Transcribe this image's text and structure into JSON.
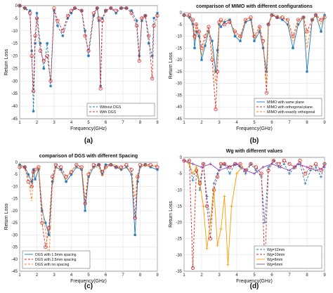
{
  "chart_data": [
    {
      "type": "line",
      "panel_label": "(a)",
      "title": "",
      "xlabel": "Frequency(GHz)",
      "ylabel": "Return Loss",
      "xlim": [
        1,
        9
      ],
      "ylim": [
        -45,
        0
      ],
      "xticks": [
        "1",
        "2",
        "3",
        "4",
        "5",
        "6",
        "7",
        "8",
        "9"
      ],
      "yticks": [
        "0",
        "-5",
        "-10",
        "-15",
        "-20",
        "-25",
        "-30",
        "-35",
        "-40",
        "-45"
      ],
      "grid": true,
      "legend_position": "lower-right",
      "series": [
        {
          "name": "Without DGS",
          "color": "#1f77b4",
          "dashed": true,
          "marker": "star",
          "x": [
            1,
            1.3,
            1.6,
            1.7,
            1.8,
            1.9,
            2.0,
            2.2,
            2.4,
            2.6,
            2.8,
            3.0,
            3.2,
            3.5,
            3.8,
            4.0,
            4.2,
            4.6,
            4.8,
            5.0,
            5.3,
            5.5,
            5.6,
            5.7,
            5.8,
            6.0,
            6.3,
            6.6,
            6.9,
            7.2,
            7.5,
            7.8,
            7.95,
            8.1,
            8.3,
            8.5,
            8.7,
            8.8,
            9.0
          ],
          "y": [
            0,
            -1,
            -2,
            -18,
            -42,
            -15,
            -3,
            -15,
            -25,
            -15,
            -32,
            -2,
            -8,
            -12,
            -5,
            -3,
            -1,
            -2,
            -10,
            -20,
            -4,
            -1,
            -6,
            -32,
            -5,
            -2,
            -1,
            -3,
            -1,
            -1,
            -2,
            -6,
            -20,
            -6,
            -4,
            -15,
            -20,
            -5,
            -3
          ]
        },
        {
          "name": "With DGS",
          "color": "#d62728",
          "dashed": true,
          "marker": "circle",
          "x": [
            1,
            1.3,
            1.6,
            1.7,
            1.8,
            1.9,
            2.0,
            2.2,
            2.4,
            2.6,
            2.8,
            3.0,
            3.2,
            3.5,
            3.8,
            4.0,
            4.2,
            4.6,
            4.8,
            5.0,
            5.3,
            5.5,
            5.6,
            5.7,
            5.8,
            6.0,
            6.3,
            6.6,
            6.9,
            7.2,
            7.5,
            7.8,
            7.95,
            8.1,
            8.3,
            8.5,
            8.7,
            8.8,
            9.0
          ],
          "y": [
            0,
            -1,
            -3,
            -20,
            -34,
            -12,
            -5,
            -18,
            -22,
            -20,
            -30,
            -1,
            -6,
            -10,
            -4,
            -2,
            -1,
            -2,
            -12,
            -18,
            -3,
            -1,
            -5,
            -33,
            -6,
            -2,
            -1,
            -2,
            -1,
            -1,
            -3,
            -8,
            -22,
            -5,
            -4,
            -12,
            -29,
            -8,
            -4
          ]
        }
      ]
    },
    {
      "type": "line",
      "panel_label": "(b)",
      "title": "comparison of MIMO with different configurations",
      "xlabel": "Frequency(GHz)",
      "ylabel": "Return Loss",
      "xlim": [
        1,
        9
      ],
      "ylim": [
        -45,
        0
      ],
      "xticks": [
        "1",
        "2",
        "3",
        "4",
        "5",
        "6",
        "7",
        "8",
        "9"
      ],
      "yticks": [
        "0",
        "-5",
        "-10",
        "-15",
        "-20",
        "-25",
        "-30",
        "-35",
        "-40",
        "-45"
      ],
      "grid": true,
      "legend_position": "lower-right",
      "series": [
        {
          "name": "MIMO with same plane",
          "color": "#1f77b4",
          "dashed": false,
          "marker": "star",
          "x": [
            1,
            1.3,
            1.5,
            1.6,
            1.7,
            1.85,
            2.0,
            2.2,
            2.4,
            2.6,
            2.8,
            2.9,
            3.0,
            3.1,
            3.3,
            3.6,
            3.9,
            4.2,
            4.5,
            4.8,
            5.0,
            5.3,
            5.5,
            5.7,
            5.8,
            6.0,
            6.3,
            6.6,
            6.9,
            7.2,
            7.5,
            7.8,
            8.0,
            8.3,
            8.5,
            8.8,
            9.0
          ],
          "y": [
            -1,
            -2,
            -5,
            -15,
            -8,
            -10,
            -20,
            -14,
            -8,
            -12,
            -25,
            -16,
            -5,
            -6,
            -4,
            -3,
            -10,
            -12,
            -4,
            -3,
            -12,
            -8,
            -15,
            -25,
            -5,
            -1,
            -2,
            -3,
            -5,
            -15,
            -5,
            -2,
            -25,
            -3,
            -1,
            -8,
            -1
          ]
        },
        {
          "name": "MIMO with orthogonal plane",
          "color": "#d62728",
          "dashed": true,
          "marker": "circle",
          "x": [
            1,
            1.3,
            1.5,
            1.6,
            1.7,
            1.85,
            2.0,
            2.2,
            2.4,
            2.6,
            2.8,
            2.9,
            3.0,
            3.1,
            3.3,
            3.6,
            3.9,
            4.2,
            4.5,
            4.8,
            5.0,
            5.3,
            5.5,
            5.7,
            5.8,
            6.0,
            6.3,
            6.6,
            6.9,
            7.2,
            7.5,
            7.8,
            8.0,
            8.3,
            8.5,
            8.8,
            9.0
          ],
          "y": [
            -1,
            -1,
            -3,
            -10,
            -5,
            -8,
            -15,
            -10,
            -6,
            -20,
            -41,
            -25,
            -4,
            -3,
            -5,
            -4,
            -8,
            -10,
            -3,
            -2,
            -10,
            -6,
            -12,
            -34,
            -5,
            -1,
            -2,
            -2,
            -3,
            -10,
            -3,
            -2,
            -8,
            -3,
            -1,
            -3,
            -2
          ]
        },
        {
          "name": "MIMO with exactly orthogonal",
          "color": "#ff7f0e",
          "dashed": true,
          "marker": "none",
          "x": [
            1,
            1.3,
            1.5,
            1.6,
            1.7,
            1.85,
            2.0,
            2.2,
            2.4,
            2.6,
            2.8,
            2.9,
            3.0,
            3.1,
            3.3,
            3.6,
            3.9,
            4.2,
            4.5,
            4.8,
            5.0,
            5.3,
            5.5,
            5.7,
            5.8,
            6.0,
            6.3,
            6.6,
            6.9,
            7.2,
            7.5,
            7.8,
            8.0,
            8.3,
            8.5,
            8.8,
            9.0
          ],
          "y": [
            -1,
            -2,
            -4,
            -12,
            -6,
            -9,
            -18,
            -12,
            -7,
            -15,
            -30,
            -22,
            -5,
            -4,
            -3,
            -3,
            -9,
            -11,
            -3,
            -2,
            -11,
            -7,
            -13,
            -30,
            -6,
            -1,
            -1,
            -2,
            -4,
            -12,
            -4,
            -2,
            -15,
            -3,
            -1,
            -5,
            -1
          ]
        }
      ]
    },
    {
      "type": "line",
      "panel_label": "(c)",
      "title": "comparison of DGS with different Spacing",
      "xlabel": "Frequency(GHz)",
      "ylabel": "Return Loss",
      "xlim": [
        1,
        9
      ],
      "ylim": [
        -45,
        0
      ],
      "xticks": [
        "1",
        "2",
        "3",
        "4",
        "5",
        "6",
        "7",
        "8",
        "9"
      ],
      "yticks": [
        "0",
        "-5",
        "-10",
        "-15",
        "-20",
        "-25",
        "-30",
        "-35",
        "-40",
        "-45"
      ],
      "grid": true,
      "legend_position": "lower-left",
      "series": [
        {
          "name": "DGS with 1.5mm spacing",
          "color": "#1f77b4",
          "dashed": false,
          "marker": "star",
          "x": [
            1,
            1.3,
            1.5,
            1.7,
            1.8,
            1.9,
            2.1,
            2.3,
            2.5,
            2.7,
            2.9,
            3.1,
            3.4,
            3.7,
            4.0,
            4.3,
            4.6,
            4.8,
            5.0,
            5.3,
            5.6,
            5.8,
            6.0,
            6.3,
            6.6,
            6.9,
            7.2,
            7.5,
            7.7,
            7.85,
            8.0,
            8.3,
            8.6,
            9.0
          ],
          "y": [
            -1,
            -2,
            -5,
            -8,
            -3,
            -7,
            -3,
            -20,
            -25,
            -30,
            -8,
            -2,
            -3,
            -8,
            -5,
            -2,
            -3,
            -20,
            -6,
            -2,
            -1,
            -5,
            -1,
            -1,
            -2,
            -3,
            -2,
            -5,
            -30,
            -8,
            -2,
            -1,
            -2,
            -3
          ]
        },
        {
          "name": "DGS with 2.5mm spacing",
          "color": "#d62728",
          "dashed": true,
          "marker": "circle",
          "x": [
            1,
            1.3,
            1.5,
            1.7,
            1.8,
            1.9,
            2.1,
            2.3,
            2.5,
            2.7,
            2.9,
            3.1,
            3.4,
            3.7,
            4.0,
            4.3,
            4.6,
            4.8,
            5.0,
            5.3,
            5.6,
            5.8,
            6.0,
            6.3,
            6.6,
            6.9,
            7.2,
            7.5,
            7.7,
            7.85,
            8.0,
            8.3,
            8.6,
            9.0
          ],
          "y": [
            -2,
            -2,
            -8,
            -10,
            -4,
            -3,
            -2,
            -25,
            -35,
            -27,
            -6,
            -1,
            -2,
            -6,
            -4,
            -1,
            -2,
            -17,
            -5,
            -1,
            -1,
            -4,
            -2,
            -1,
            -2,
            -2,
            -1,
            -3,
            -23,
            -6,
            -1,
            -1,
            -1,
            -2
          ]
        },
        {
          "name": "DGS with no spacing",
          "color": "#ff7f0e",
          "dashed": true,
          "marker": "none",
          "x": [
            1,
            1.3,
            1.5,
            1.7,
            1.8,
            1.9,
            2.1,
            2.3,
            2.5,
            2.7,
            2.9,
            3.1,
            3.4,
            3.7,
            4.0,
            4.3,
            4.6,
            4.8,
            5.0,
            5.3,
            5.6,
            5.8,
            6.0,
            6.3,
            6.6,
            6.9,
            7.2,
            7.5,
            7.7,
            7.85,
            8.0,
            8.3,
            8.6,
            9.0
          ],
          "y": [
            -1,
            -3,
            -6,
            -16,
            -5,
            -4,
            -2,
            -18,
            -28,
            -40,
            -10,
            -2,
            -4,
            -7,
            -3,
            -2,
            -2,
            -15,
            -4,
            -2,
            -2,
            -6,
            -2,
            -1,
            -1,
            -3,
            -2,
            -4,
            -15,
            -5,
            -2,
            -1,
            -2,
            -1
          ]
        }
      ]
    },
    {
      "type": "line",
      "panel_label": "(d)",
      "title": "Wg with different values",
      "xlabel": "Frequency(GHz)",
      "ylabel": "Return Loss",
      "xlim": [
        1,
        9
      ],
      "ylim": [
        -35,
        0
      ],
      "xticks": [
        "1",
        "2",
        "3",
        "4",
        "5",
        "6",
        "7",
        "8",
        "9"
      ],
      "yticks": [
        "0",
        "-5",
        "-10",
        "-15",
        "-20",
        "-25",
        "-30",
        "-35"
      ],
      "grid": true,
      "legend_position": "lower-right",
      "series": [
        {
          "name": "Wg=12mm",
          "color": "#1f77b4",
          "dashed": true,
          "marker": "plus",
          "x": [
            1,
            1.3,
            1.5,
            1.7,
            1.9,
            2.1,
            2.3,
            2.5,
            2.7,
            2.9,
            3.1,
            3.3,
            3.6,
            3.9,
            4.2,
            4.5,
            4.8,
            5.1,
            5.4,
            5.6,
            5.8,
            6.1,
            6.4,
            6.7,
            7.0,
            7.3,
            7.6,
            7.9,
            8.2,
            8.5,
            8.8,
            9.0
          ],
          "y": [
            -1,
            -2,
            -7,
            -3,
            -10,
            -2,
            -12,
            -20,
            -8,
            -5,
            -3,
            -2,
            -5,
            -2,
            -3,
            -5,
            -2,
            -4,
            -6,
            -20,
            -3,
            -1,
            -3,
            -2,
            -5,
            -3,
            -2,
            -8,
            -4,
            -3,
            -6,
            -2
          ]
        },
        {
          "name": "Wg=10mm",
          "color": "#d62728",
          "dashed": true,
          "marker": "circle",
          "x": [
            1,
            1.3,
            1.5,
            1.7,
            1.9,
            2.1,
            2.3,
            2.5,
            2.7,
            2.9,
            3.1,
            3.3,
            3.6,
            3.9,
            4.2,
            4.5,
            4.8,
            5.1,
            5.4,
            5.6,
            5.8,
            6.1,
            6.4,
            6.7,
            7.0,
            7.3,
            7.6,
            7.9,
            8.2,
            8.5,
            8.8,
            9.0
          ],
          "y": [
            -1,
            -1,
            -34,
            -4,
            -8,
            -2,
            -15,
            -25,
            -10,
            -6,
            -2,
            -2,
            -3,
            -2,
            -2,
            -4,
            -2,
            -3,
            -5,
            -33,
            -4,
            -1,
            -2,
            -1,
            -2,
            -3,
            -1,
            -5,
            -3,
            -2,
            -4,
            -2
          ]
        },
        {
          "name": "Wg=8mm",
          "color": "#ff9900",
          "dashed": false,
          "marker": "plus",
          "x": [
            1,
            1.3,
            1.5,
            1.7,
            1.9,
            2.1,
            2.3,
            2.5,
            2.7,
            2.9,
            3.1,
            3.3,
            3.5,
            3.7,
            4.0,
            4.3
          ],
          "y": [
            -1,
            -2,
            -5,
            -3,
            -8,
            -15,
            -28,
            -20,
            -10,
            -27,
            -22,
            -12,
            -33,
            -15,
            -5,
            -3
          ]
        },
        {
          "name": "Wg=6mm",
          "color": "#8e44ad",
          "dashed": false,
          "marker": "plus",
          "x": [
            1,
            1.5,
            2.0,
            2.5,
            3.0,
            3.5,
            4.0,
            4.5,
            5.0,
            5.5,
            6.0,
            6.5,
            7.0,
            7.5,
            8.0,
            8.5,
            9.0
          ],
          "y": [
            -1,
            -2,
            -3,
            -2,
            -4,
            -3,
            -2,
            -4,
            -5,
            -3,
            -2,
            -3,
            -4,
            -2,
            -3,
            -4,
            -3
          ]
        }
      ]
    }
  ]
}
